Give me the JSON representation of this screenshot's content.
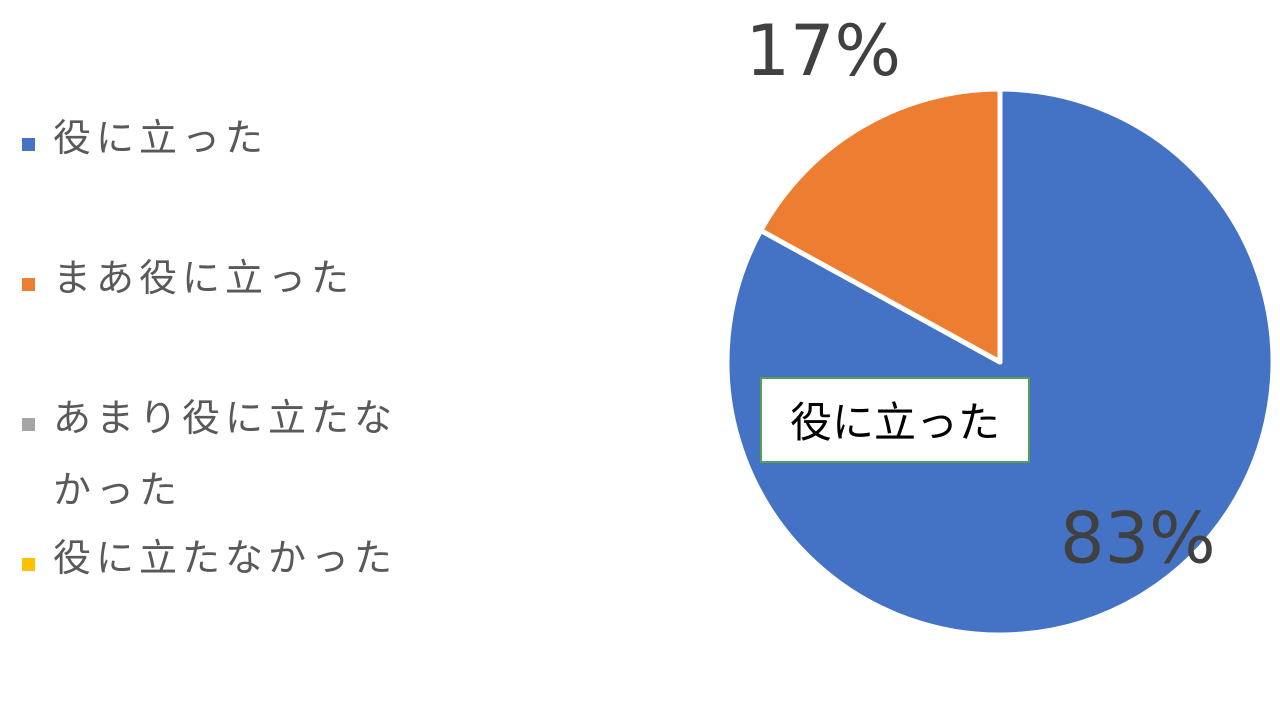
{
  "chart_data": {
    "type": "pie",
    "categories": [
      "役に立った",
      "まあ役に立った",
      "あまり役に立たなかった",
      "役に立たなかった"
    ],
    "values": [
      83,
      17,
      0,
      0
    ],
    "data_labels": [
      "83%",
      "17%",
      "",
      ""
    ],
    "colors": [
      "#4472c4",
      "#ed7d31",
      "#a5a5a5",
      "#ffc000"
    ],
    "legend_position": "left",
    "callout": "役に立った"
  }
}
